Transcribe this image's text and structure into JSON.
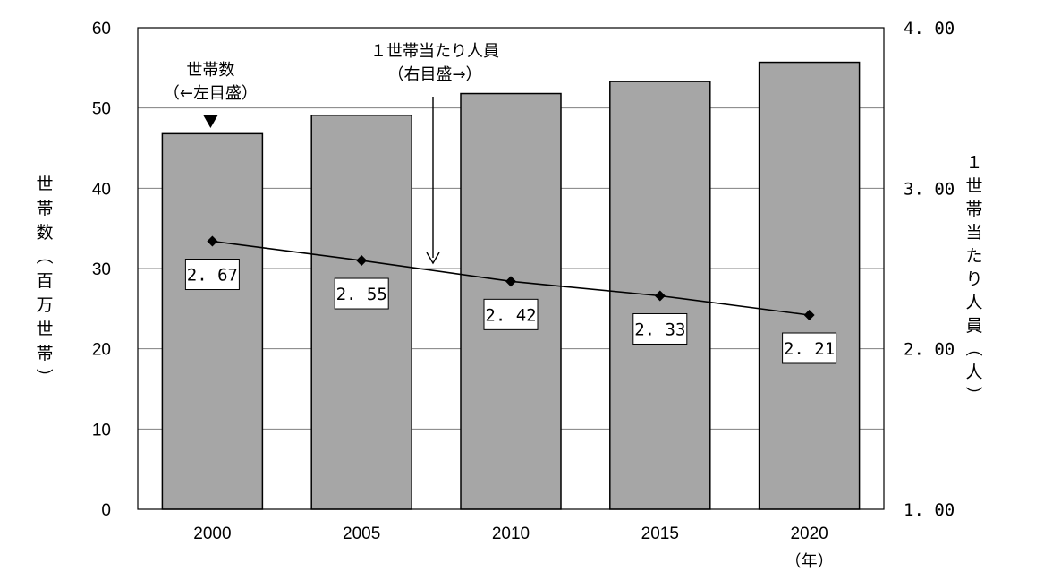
{
  "chart_data": {
    "type": "bar",
    "categories": [
      "2000",
      "2005",
      "2010",
      "2015",
      "2020"
    ],
    "x_unit": "（年）",
    "series": [
      {
        "type": "bar",
        "axis": "left",
        "values": [
          46.8,
          49.1,
          51.8,
          53.3,
          55.7
        ]
      },
      {
        "type": "line",
        "axis": "right",
        "values": [
          2.67,
          2.55,
          2.42,
          2.33,
          2.21
        ],
        "data_labels": [
          "2. 67",
          "2. 55",
          "2. 42",
          "2. 33",
          "2. 21"
        ]
      }
    ],
    "ylim": [
      0,
      60
    ],
    "y_ticks": [
      "0",
      "10",
      "20",
      "30",
      "40",
      "50",
      "60"
    ],
    "y2lim": [
      1.0,
      4.0
    ],
    "y2_ticks": [
      "1. 00",
      "2. 00",
      "3. 00",
      "4. 00"
    ],
    "ylabel": "世帯数（百万世帯）",
    "y2label": "１世帯当たり人員（人）",
    "annotations": [
      {
        "lines": [
          "世帯数",
          "（←左目盛）"
        ]
      },
      {
        "lines": [
          "１世帯当たり人員",
          "（右目盛→）"
        ]
      }
    ],
    "grid": true,
    "colors": {
      "bar_fill": "#a6a6a6",
      "bar_stroke": "#000000",
      "line": "#000000",
      "grid": "#808080"
    }
  }
}
